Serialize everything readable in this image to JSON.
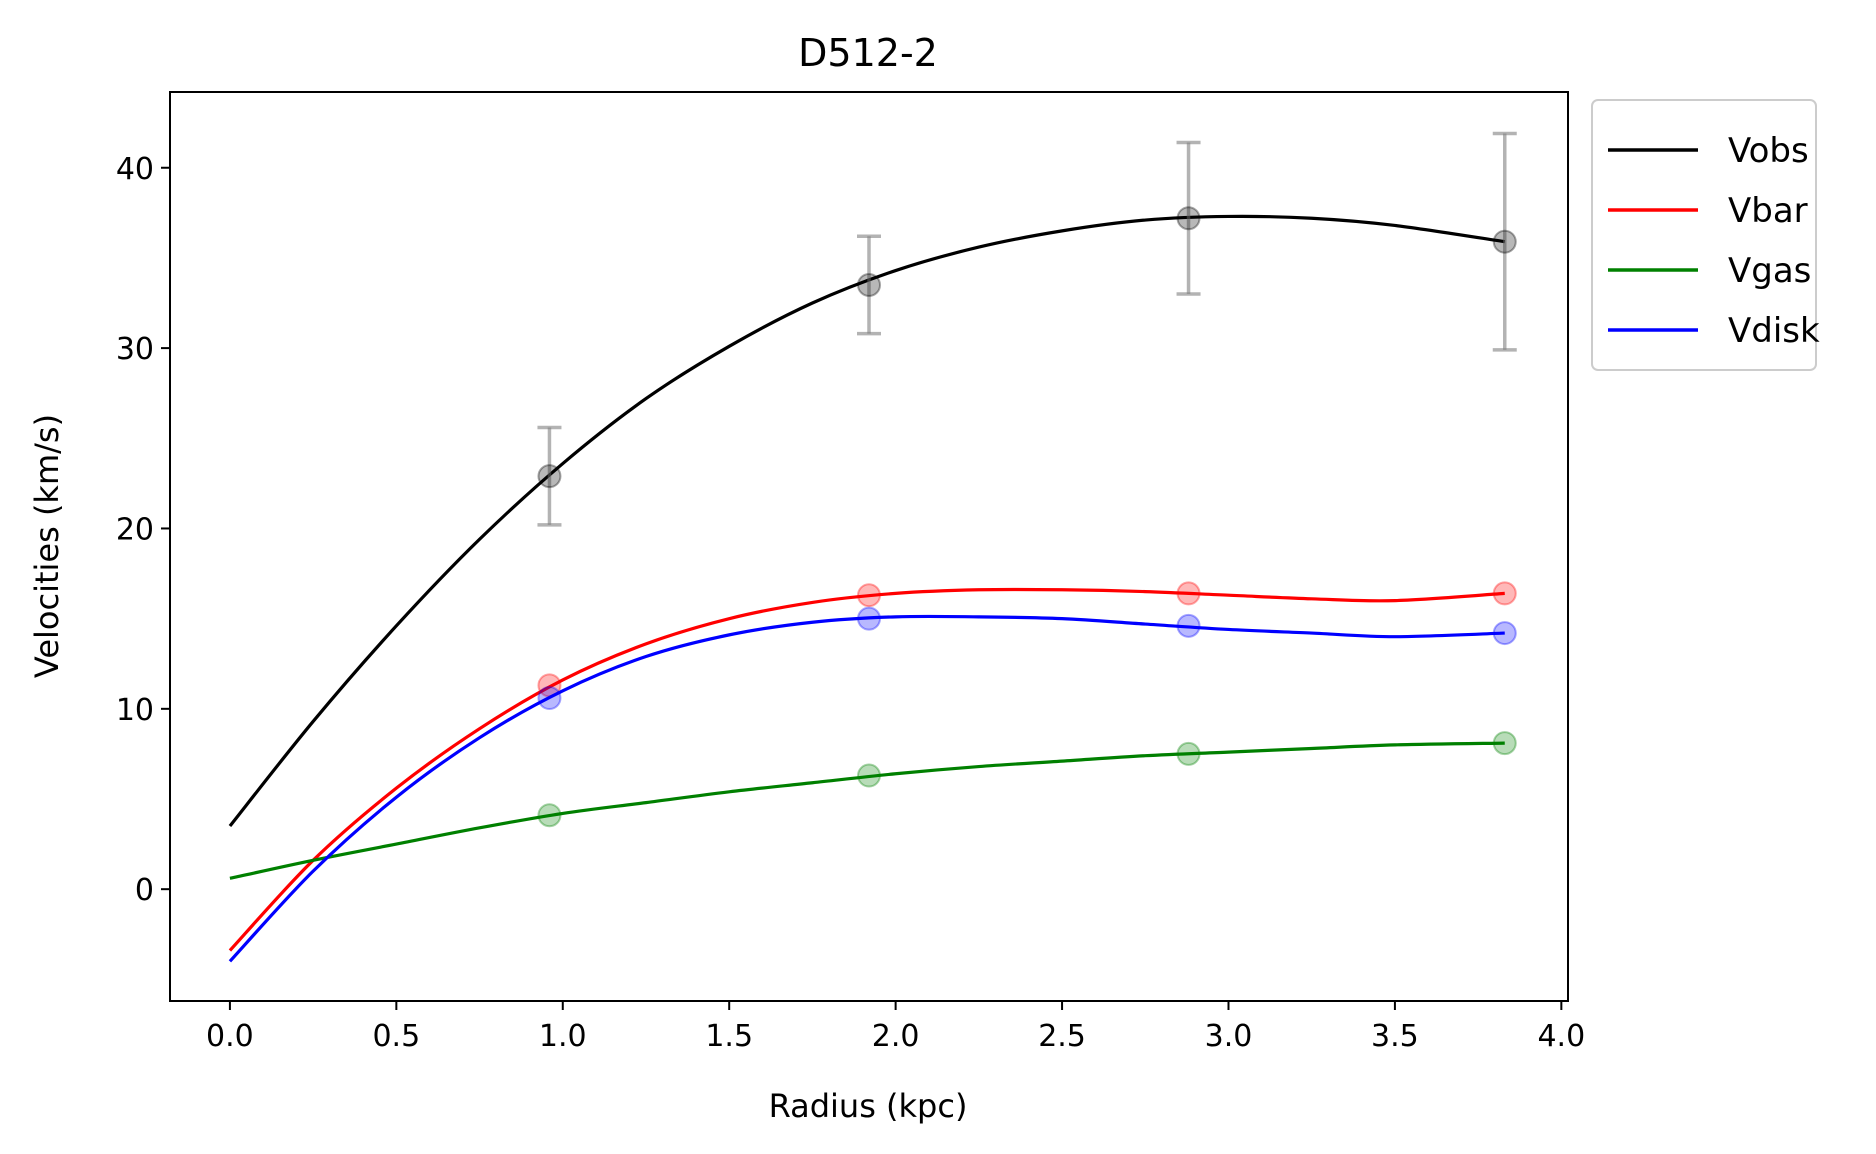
{
  "chart_data": {
    "type": "line",
    "title": "D512-2",
    "xlabel": "Radius (kpc)",
    "ylabel": "Velocities (km/s)",
    "xlim": [
      -0.18,
      4.02
    ],
    "ylim": [
      -6.2,
      44.2
    ],
    "xticks": [
      0.0,
      0.5,
      1.0,
      1.5,
      2.0,
      2.5,
      3.0,
      3.5,
      4.0
    ],
    "xtick_labels": [
      "0.0",
      "0.5",
      "1.0",
      "1.5",
      "2.0",
      "2.5",
      "3.0",
      "3.5",
      "4.0"
    ],
    "yticks": [
      0,
      10,
      20,
      30,
      40
    ],
    "ytick_labels": [
      "0",
      "10",
      "20",
      "30",
      "40"
    ],
    "grid": false,
    "legend_position": "outside-top-right",
    "points_x": [
      0.96,
      1.92,
      2.88,
      3.83
    ],
    "series": [
      {
        "name": "Vobs",
        "color": "#000000",
        "points": [
          22.9,
          33.5,
          37.2,
          35.9
        ],
        "errors": [
          2.7,
          2.7,
          4.2,
          6.0
        ],
        "curve": [
          [
            0.0,
            3.5
          ],
          [
            0.25,
            9.3
          ],
          [
            0.5,
            14.6
          ],
          [
            0.75,
            19.4
          ],
          [
            1.0,
            23.6
          ],
          [
            1.25,
            27.2
          ],
          [
            1.5,
            30.1
          ],
          [
            1.75,
            32.5
          ],
          [
            2.0,
            34.3
          ],
          [
            2.25,
            35.6
          ],
          [
            2.5,
            36.5
          ],
          [
            2.75,
            37.1
          ],
          [
            3.0,
            37.3
          ],
          [
            3.25,
            37.2
          ],
          [
            3.5,
            36.8
          ],
          [
            3.83,
            35.9
          ]
        ]
      },
      {
        "name": "Vbar",
        "color": "#ff0000",
        "points": [
          11.3,
          16.3,
          16.4,
          16.4
        ],
        "curve": [
          [
            0.0,
            -3.4
          ],
          [
            0.25,
            1.6
          ],
          [
            0.5,
            5.6
          ],
          [
            0.75,
            8.9
          ],
          [
            1.0,
            11.6
          ],
          [
            1.25,
            13.6
          ],
          [
            1.5,
            15.0
          ],
          [
            1.75,
            15.9
          ],
          [
            2.0,
            16.4
          ],
          [
            2.25,
            16.6
          ],
          [
            2.5,
            16.6
          ],
          [
            2.75,
            16.5
          ],
          [
            3.0,
            16.3
          ],
          [
            3.25,
            16.1
          ],
          [
            3.5,
            16.0
          ],
          [
            3.83,
            16.4
          ]
        ]
      },
      {
        "name": "Vgas",
        "color": "#008000",
        "points": [
          4.1,
          6.3,
          7.5,
          8.1
        ],
        "curve": [
          [
            0.0,
            0.6
          ],
          [
            0.25,
            1.6
          ],
          [
            0.5,
            2.5
          ],
          [
            0.75,
            3.4
          ],
          [
            1.0,
            4.2
          ],
          [
            1.25,
            4.8
          ],
          [
            1.5,
            5.4
          ],
          [
            1.75,
            5.9
          ],
          [
            2.0,
            6.4
          ],
          [
            2.25,
            6.8
          ],
          [
            2.5,
            7.1
          ],
          [
            2.75,
            7.4
          ],
          [
            3.0,
            7.6
          ],
          [
            3.25,
            7.8
          ],
          [
            3.5,
            8.0
          ],
          [
            3.83,
            8.1
          ]
        ]
      },
      {
        "name": "Vdisk",
        "color": "#0000ff",
        "points": [
          10.6,
          15.0,
          14.6,
          14.2
        ],
        "curve": [
          [
            0.0,
            -4.0
          ],
          [
            0.25,
            1.0
          ],
          [
            0.5,
            5.1
          ],
          [
            0.75,
            8.4
          ],
          [
            1.0,
            11.0
          ],
          [
            1.25,
            12.9
          ],
          [
            1.5,
            14.1
          ],
          [
            1.75,
            14.8
          ],
          [
            2.0,
            15.1
          ],
          [
            2.25,
            15.1
          ],
          [
            2.5,
            15.0
          ],
          [
            2.75,
            14.7
          ],
          [
            3.0,
            14.4
          ],
          [
            3.25,
            14.2
          ],
          [
            3.5,
            14.0
          ],
          [
            3.83,
            14.2
          ]
        ]
      }
    ]
  }
}
